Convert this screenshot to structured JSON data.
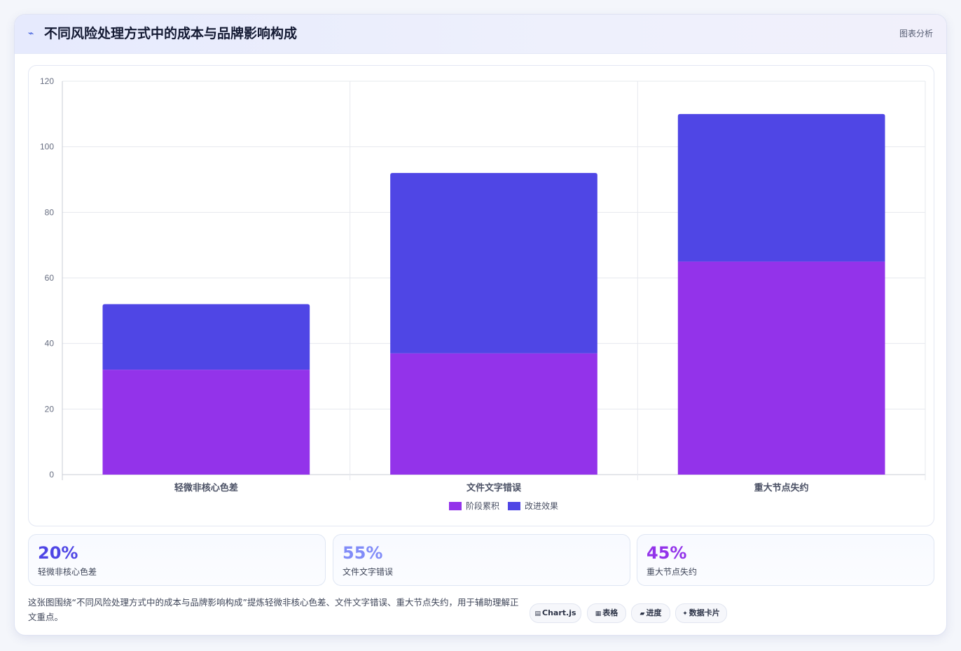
{
  "header": {
    "icon": "chart-line-icon",
    "title": "不同风险处理方式中的成本与品牌影响构成",
    "tag": "图表分析"
  },
  "colors": {
    "series_1": "#9333ea",
    "series_2": "#4f46e5",
    "stat_1": "#4f46e5",
    "stat_2": "#818cf8",
    "stat_3": "#9333ea"
  },
  "chart_data": {
    "type": "bar",
    "stacked": true,
    "categories": [
      "轻微非核心色差",
      "文件文字错误",
      "重大节点失约"
    ],
    "series": [
      {
        "name": "阶段累积",
        "values": [
          32,
          37,
          65
        ]
      },
      {
        "name": "改进效果",
        "values": [
          20,
          55,
          45
        ]
      }
    ],
    "ylim": [
      0,
      120
    ],
    "yticks": [
      "0",
      "20",
      "40",
      "60",
      "80",
      "100",
      "120"
    ],
    "grid": true,
    "legend": "bottom"
  },
  "stats": [
    {
      "value": "20%",
      "label": "轻微非核心色差"
    },
    {
      "value": "55%",
      "label": "文件文字错误"
    },
    {
      "value": "45%",
      "label": "重大节点失约"
    }
  ],
  "description": "这张图围绕“不同风险处理方式中的成本与品牌影响构成”提炼轻微非核心色差、文件文字错误、重大节点失约，用于辅助理解正文重点。",
  "chips": [
    {
      "icon": "chart-icon",
      "glyph": "▤",
      "label": "Chart.js"
    },
    {
      "icon": "table-icon",
      "glyph": "▦",
      "label": "表格"
    },
    {
      "icon": "progress-icon",
      "glyph": "▰",
      "label": "进度"
    },
    {
      "icon": "sparkle-icon",
      "glyph": "✦",
      "label": "数据卡片"
    }
  ]
}
